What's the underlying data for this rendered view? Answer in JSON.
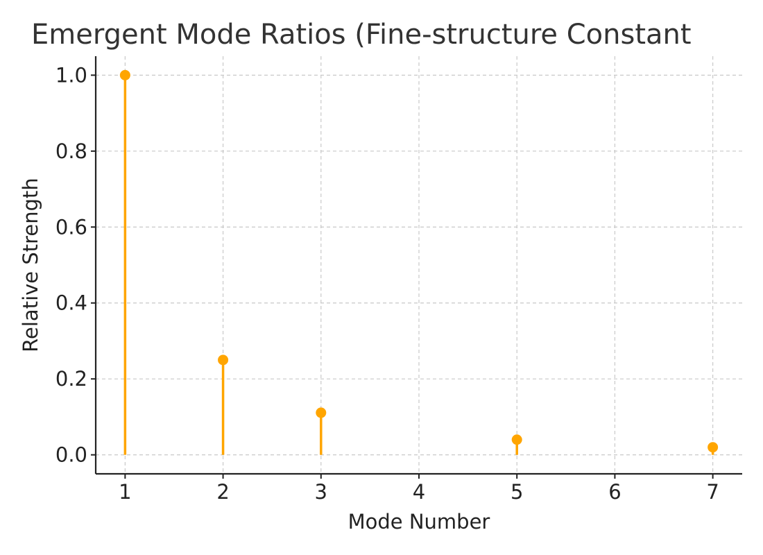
{
  "chart_data": {
    "type": "scatter",
    "style": "stem",
    "title": "Emergent Mode Ratios (Fine-structure Constant",
    "xlabel": "Mode Number",
    "ylabel": "Relative Strength",
    "xlim": [
      0.7,
      7.3
    ],
    "ylim": [
      -0.05,
      1.05
    ],
    "xticks": [
      1,
      2,
      3,
      4,
      5,
      6,
      7
    ],
    "xtick_labels": [
      "1",
      "2",
      "3",
      "4",
      "5",
      "6",
      "7"
    ],
    "yticks": [
      0.0,
      0.2,
      0.4,
      0.6,
      0.8,
      1.0
    ],
    "ytick_labels": [
      "0.0",
      "0.2",
      "0.4",
      "0.6",
      "0.8",
      "1.0"
    ],
    "grid": true,
    "series": [
      {
        "color": "#FFA500",
        "x": [
          1,
          2,
          3,
          5,
          7
        ],
        "y": [
          1.0,
          0.25,
          0.111,
          0.04,
          0.02
        ]
      }
    ]
  }
}
